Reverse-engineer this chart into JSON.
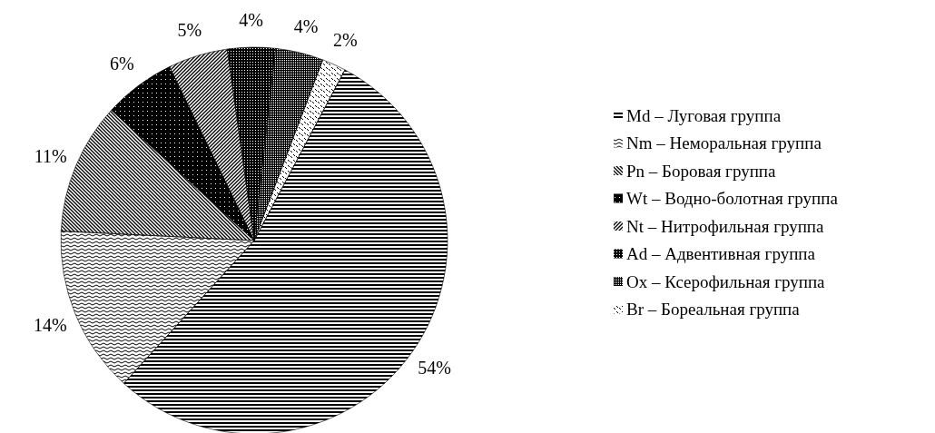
{
  "chart_data": {
    "type": "pie",
    "categories": [
      "Md – Луговая группа",
      "Nm – Неморальная группа",
      "Pn – Боровая группа",
      "Wt – Водно-болотная группа",
      "Nt – Нитрофильная группа",
      "Ad – Адвентивная группа",
      "Ox – Ксерофильная группа",
      "Br – Бореальная группа"
    ],
    "values": [
      54,
      14,
      11,
      6,
      5,
      4,
      4,
      2
    ],
    "value_labels": [
      "54%",
      "14%",
      "11%",
      "6%",
      "5%",
      "4%",
      "4%",
      "2%"
    ],
    "colors": [
      "#000000",
      "#000000",
      "#000000",
      "#000000",
      "#000000",
      "#000000",
      "#000000",
      "#000000"
    ],
    "legend": "right"
  }
}
